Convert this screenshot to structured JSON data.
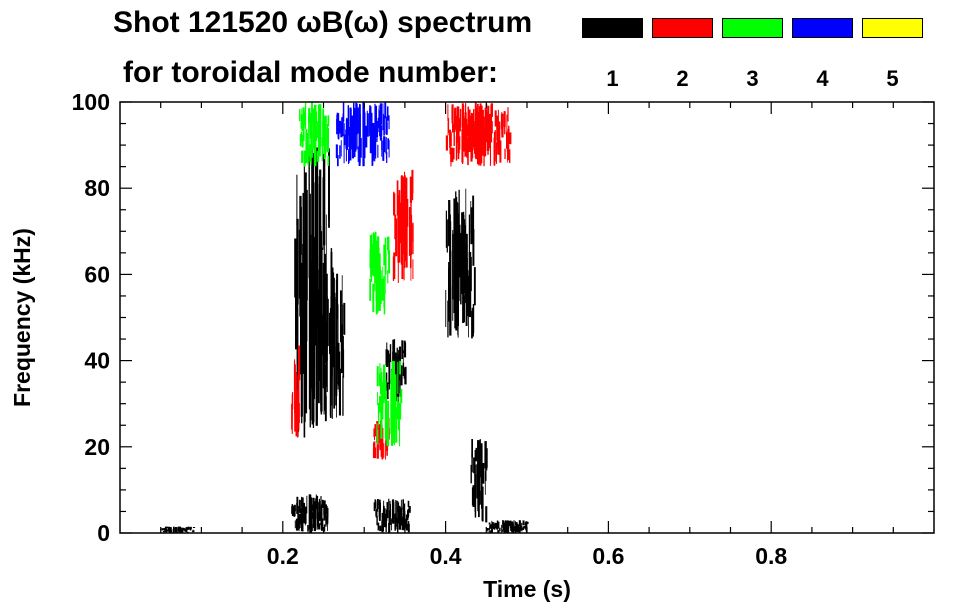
{
  "title_line1": "Shot 121520 ωB(ω) spectrum",
  "title_line2": "for toroidal mode number:",
  "legend": [
    {
      "mode": "1",
      "color": "#000000"
    },
    {
      "mode": "2",
      "color": "#ff0000"
    },
    {
      "mode": "3",
      "color": "#00ff00"
    },
    {
      "mode": "4",
      "color": "#0000ff"
    },
    {
      "mode": "5",
      "color": "#ffff00"
    }
  ],
  "chart_data": {
    "type": "heatmap",
    "title": "Shot 121520 ωB(ω) spectrum for toroidal mode number: 1 2 3 4 5",
    "xlabel": "Time (s)",
    "ylabel": "Frequency (kHz)",
    "xlim": [
      0.0,
      1.0
    ],
    "ylim": [
      0,
      100
    ],
    "x_ticks": [
      0.2,
      0.4,
      0.6,
      0.8
    ],
    "x_tick_labels": [
      "0.2",
      "0.4",
      "0.6",
      "0.8"
    ],
    "y_ticks": [
      0,
      20,
      40,
      60,
      80,
      100
    ],
    "y_tick_labels": [
      "0",
      "20",
      "40",
      "60",
      "80",
      "100"
    ],
    "regions": [
      {
        "mode": "1",
        "t": [
          0.212,
          0.26
        ],
        "f": [
          22,
          90
        ]
      },
      {
        "mode": "1",
        "t": [
          0.21,
          0.255
        ],
        "f": [
          0,
          9
        ]
      },
      {
        "mode": "1",
        "t": [
          0.245,
          0.275
        ],
        "f": [
          25,
          62
        ]
      },
      {
        "mode": "1",
        "t": [
          0.325,
          0.35
        ],
        "f": [
          30,
          45
        ]
      },
      {
        "mode": "1",
        "t": [
          0.31,
          0.355
        ],
        "f": [
          0,
          8
        ]
      },
      {
        "mode": "1",
        "t": [
          0.398,
          0.435
        ],
        "f": [
          45,
          80
        ]
      },
      {
        "mode": "1",
        "t": [
          0.43,
          0.45
        ],
        "f": [
          2,
          22
        ]
      },
      {
        "mode": "1",
        "t": [
          0.05,
          0.09
        ],
        "f": [
          0,
          1.5
        ]
      },
      {
        "mode": "1",
        "t": [
          0.45,
          0.5
        ],
        "f": [
          0,
          3
        ]
      },
      {
        "mode": "2",
        "t": [
          0.21,
          0.22
        ],
        "f": [
          22,
          45
        ]
      },
      {
        "mode": "2",
        "t": [
          0.31,
          0.33
        ],
        "f": [
          17,
          27
        ]
      },
      {
        "mode": "2",
        "t": [
          0.335,
          0.36
        ],
        "f": [
          58,
          85
        ]
      },
      {
        "mode": "2",
        "t": [
          0.4,
          0.48
        ],
        "f": [
          85,
          100
        ]
      },
      {
        "mode": "3",
        "t": [
          0.22,
          0.255
        ],
        "f": [
          85,
          100
        ]
      },
      {
        "mode": "3",
        "t": [
          0.305,
          0.33
        ],
        "f": [
          50,
          70
        ]
      },
      {
        "mode": "3",
        "t": [
          0.315,
          0.345
        ],
        "f": [
          20,
          40
        ]
      },
      {
        "mode": "4",
        "t": [
          0.265,
          0.33
        ],
        "f": [
          85,
          100
        ]
      }
    ]
  }
}
